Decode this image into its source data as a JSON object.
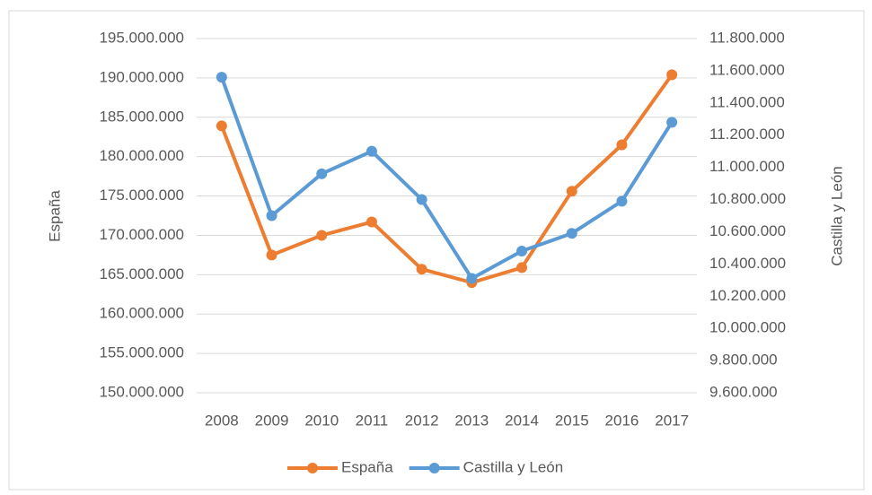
{
  "chart_data": {
    "type": "line",
    "categories": [
      "2008",
      "2009",
      "2010",
      "2011",
      "2012",
      "2013",
      "2014",
      "2015",
      "2016",
      "2017"
    ],
    "series": [
      {
        "name": "España",
        "color": "#ed7d31",
        "values": [
          183900000,
          167500000,
          170000000,
          171700000,
          165700000,
          164000000,
          165900000,
          175600000,
          181500000,
          190400000
        ]
      },
      {
        "name": "Castilla y León",
        "color": "#5b9bd5",
        "axis": "y2",
        "values": [
          11560000,
          10700000,
          10960000,
          11100000,
          10800000,
          10310000,
          10480000,
          10590000,
          10790000,
          11280000
        ]
      }
    ],
    "ylabel": "España",
    "y2label": "Castilla y León",
    "ylim": [
      150000000,
      195000000
    ],
    "yticks": [
      {
        "value": 150000000,
        "label": "150.000.000"
      },
      {
        "value": 155000000,
        "label": "155.000.000"
      },
      {
        "value": 160000000,
        "label": "160.000.000"
      },
      {
        "value": 165000000,
        "label": "165.000.000"
      },
      {
        "value": 170000000,
        "label": "170.000.000"
      },
      {
        "value": 175000000,
        "label": "175.000.000"
      },
      {
        "value": 180000000,
        "label": "180.000.000"
      },
      {
        "value": 185000000,
        "label": "185.000.000"
      },
      {
        "value": 190000000,
        "label": "190.000.000"
      },
      {
        "value": 195000000,
        "label": "195.000.000"
      }
    ],
    "y2lim": [
      9600000,
      11800000
    ],
    "y2ticks": [
      {
        "value": 9600000,
        "label": "9.600.000"
      },
      {
        "value": 9800000,
        "label": "9.800.000"
      },
      {
        "value": 10000000,
        "label": "10.000.000"
      },
      {
        "value": 10200000,
        "label": "10.200.000"
      },
      {
        "value": 10400000,
        "label": "10.400.000"
      },
      {
        "value": 10600000,
        "label": "10.600.000"
      },
      {
        "value": 10800000,
        "label": "10.800.000"
      },
      {
        "value": 11000000,
        "label": "11.000.000"
      },
      {
        "value": 11200000,
        "label": "11.200.000"
      },
      {
        "value": 11400000,
        "label": "11.400.000"
      },
      {
        "value": 11600000,
        "label": "11.600.000"
      },
      {
        "value": 11800000,
        "label": "11.800.000"
      }
    ],
    "grid": true,
    "legend": "bottom"
  }
}
